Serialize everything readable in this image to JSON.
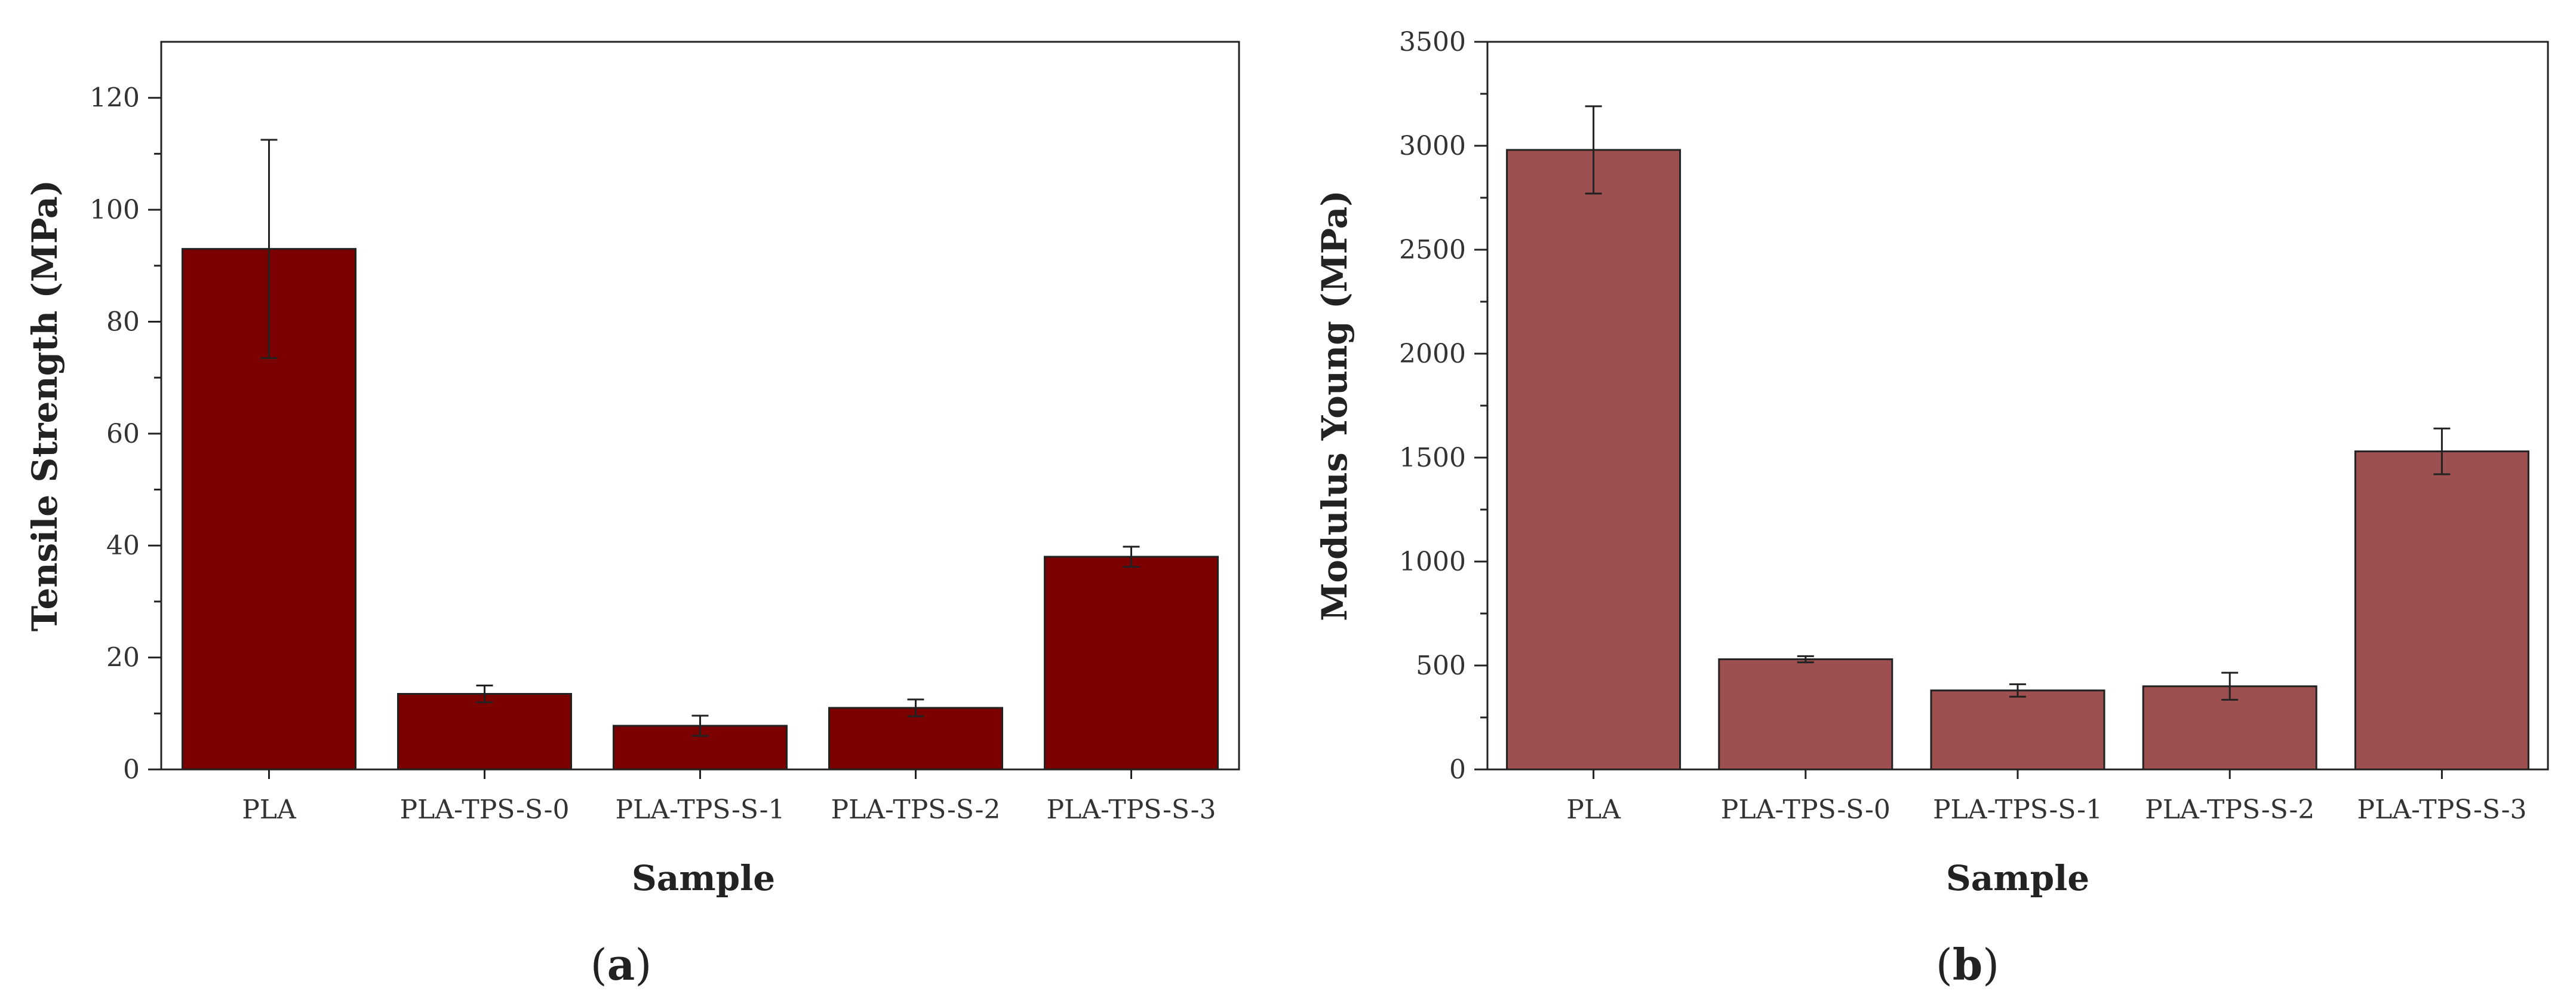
{
  "charts": [
    {
      "id": "a",
      "caption": {
        "open": "(",
        "letter": "a",
        "close": ")"
      },
      "bar_color": "#7b0000"
    },
    {
      "id": "b",
      "caption": {
        "open": "(",
        "letter": "b",
        "close": ")"
      },
      "bar_color": "#9e4f50"
    }
  ],
  "chart_data": [
    {
      "type": "bar",
      "title": "",
      "xlabel": "Sample",
      "ylabel": "Tensile Strength (MPa)",
      "ylim": [
        0,
        130
      ],
      "yticks": [
        0,
        20,
        40,
        60,
        80,
        100,
        120
      ],
      "categories": [
        "PLA",
        "PLA-TPS-S-0",
        "PLA-TPS-S-1",
        "PLA-TPS-S-2",
        "PLA-TPS-S-3"
      ],
      "values": [
        93,
        13.5,
        7.8,
        11,
        38
      ],
      "errors": [
        19.5,
        1.5,
        1.8,
        1.5,
        1.8
      ],
      "grid": false,
      "legend": "none"
    },
    {
      "type": "bar",
      "title": "",
      "xlabel": "Sample",
      "ylabel": "Modulus Young (MPa)",
      "ylim": [
        0,
        3500
      ],
      "yticks": [
        0,
        500,
        1000,
        1500,
        2000,
        2500,
        3000,
        3500
      ],
      "categories": [
        "PLA",
        "PLA-TPS-S-0",
        "PLA-TPS-S-1",
        "PLA-TPS-S-2",
        "PLA-TPS-S-3"
      ],
      "values": [
        2980,
        530,
        380,
        400,
        1530
      ],
      "errors": [
        210,
        15,
        30,
        65,
        110
      ],
      "grid": false,
      "legend": "none"
    }
  ]
}
